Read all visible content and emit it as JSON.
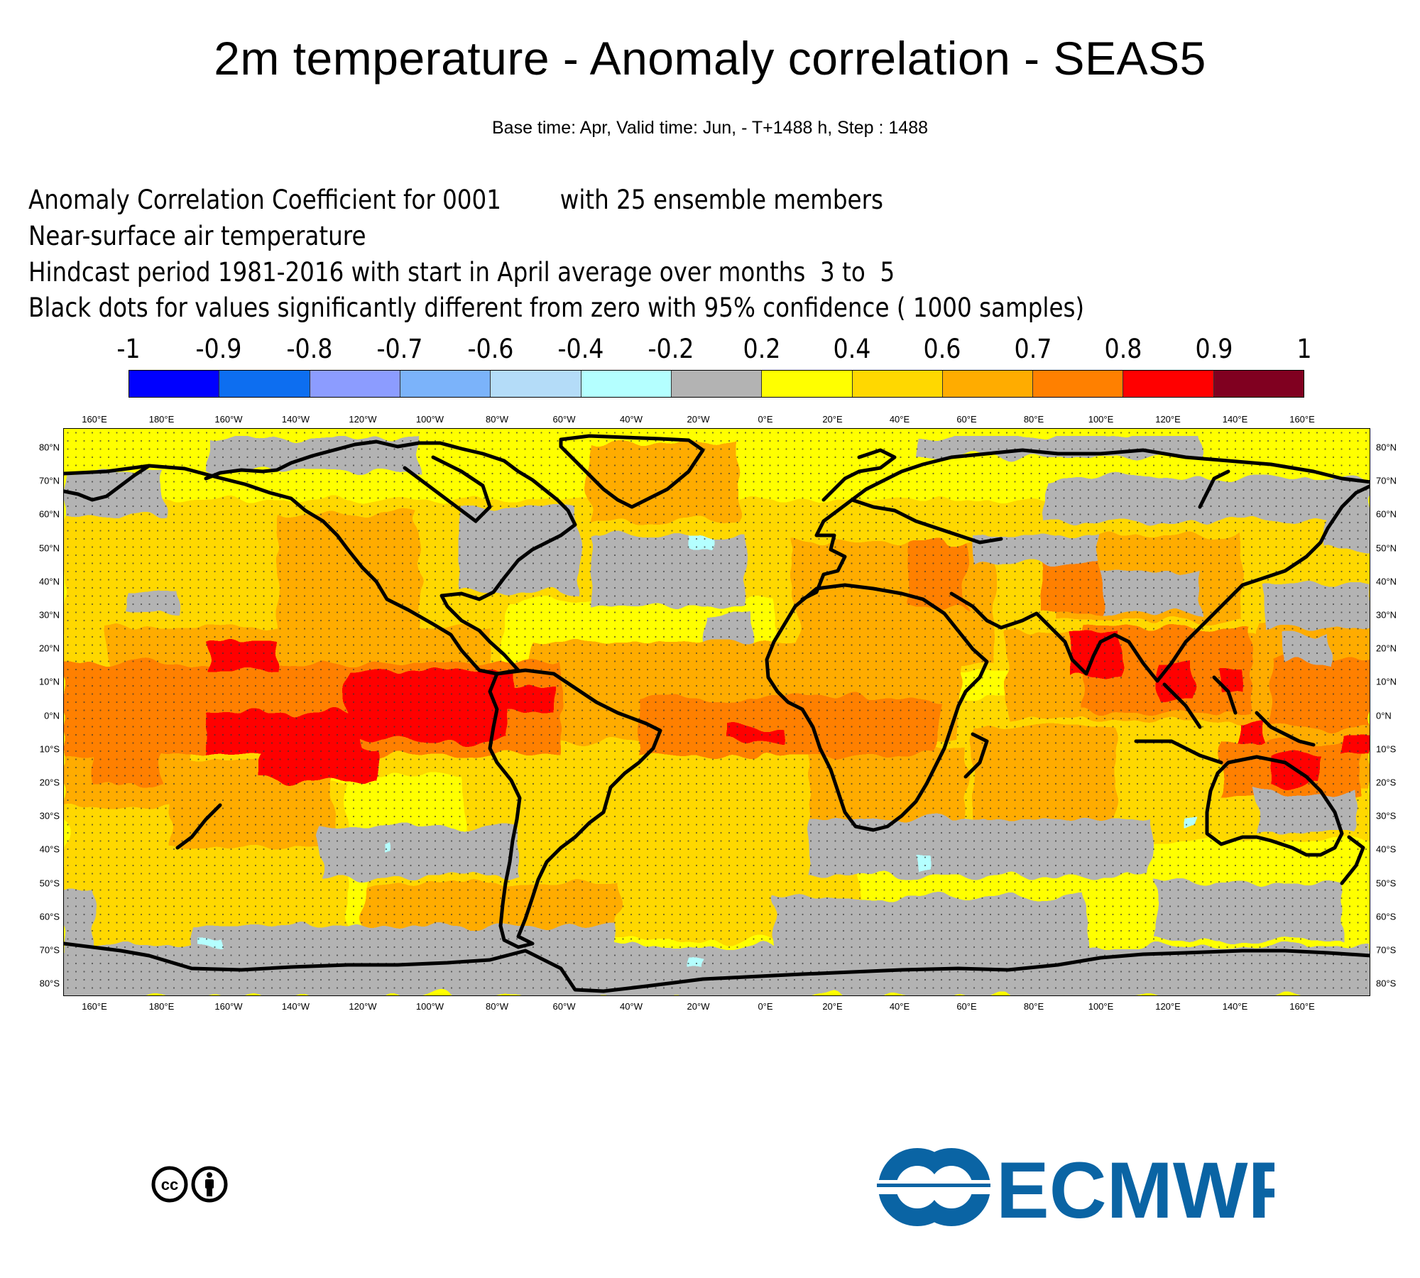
{
  "header": {
    "title": "2m temperature - Anomaly correlation - SEAS5",
    "subtitle": "Base time: Apr, Valid time: Jun, - T+1488 h, Step : 1488"
  },
  "description": {
    "line1": "Anomaly Correlation Coefficient for 0001        with 25 ensemble members",
    "line2": "Near-surface air temperature",
    "line3": "Hindcast period 1981-2016 with start in April average over months  3 to  5",
    "line4": "Black dots for values significantly different from zero with 95% confidence ( 1000 samples)"
  },
  "colorbar": {
    "labels": [
      "-1",
      "-0.9",
      "-0.8",
      "-0.7",
      "-0.6",
      "-0.4",
      "-0.2",
      "0.2",
      "0.4",
      "0.6",
      "0.7",
      "0.8",
      "0.9",
      "1"
    ],
    "colors": [
      "#0000ff",
      "#0d6ef0",
      "#8c9cff",
      "#7bb3fa",
      "#b4dcf8",
      "#b4ffff",
      "#b3b3b3",
      "#ffff00",
      "#ffd800",
      "#ffac00",
      "#ff8000",
      "#ff0000",
      "#800020"
    ]
  },
  "map": {
    "lon_labels": [
      "160°E",
      "180°E",
      "160°W",
      "140°W",
      "120°W",
      "100°W",
      "80°W",
      "60°W",
      "40°W",
      "20°W",
      "0°E",
      "20°E",
      "40°E",
      "60°E",
      "80°E",
      "100°E",
      "120°E",
      "140°E",
      "160°E"
    ],
    "lat_labels": [
      "80°N",
      "70°N",
      "60°N",
      "50°N",
      "40°N",
      "30°N",
      "20°N",
      "10°N",
      "0°N",
      "10°S",
      "20°S",
      "30°S",
      "40°S",
      "50°S",
      "60°S",
      "70°S",
      "80°S"
    ],
    "coastline_color": "#000000",
    "dot_color": "#222222"
  },
  "logos": {
    "cc_icon": "creative-commons-by-icon",
    "ecmwf_text": "ECMWF",
    "ecmwf_color": "#0a64a4"
  }
}
